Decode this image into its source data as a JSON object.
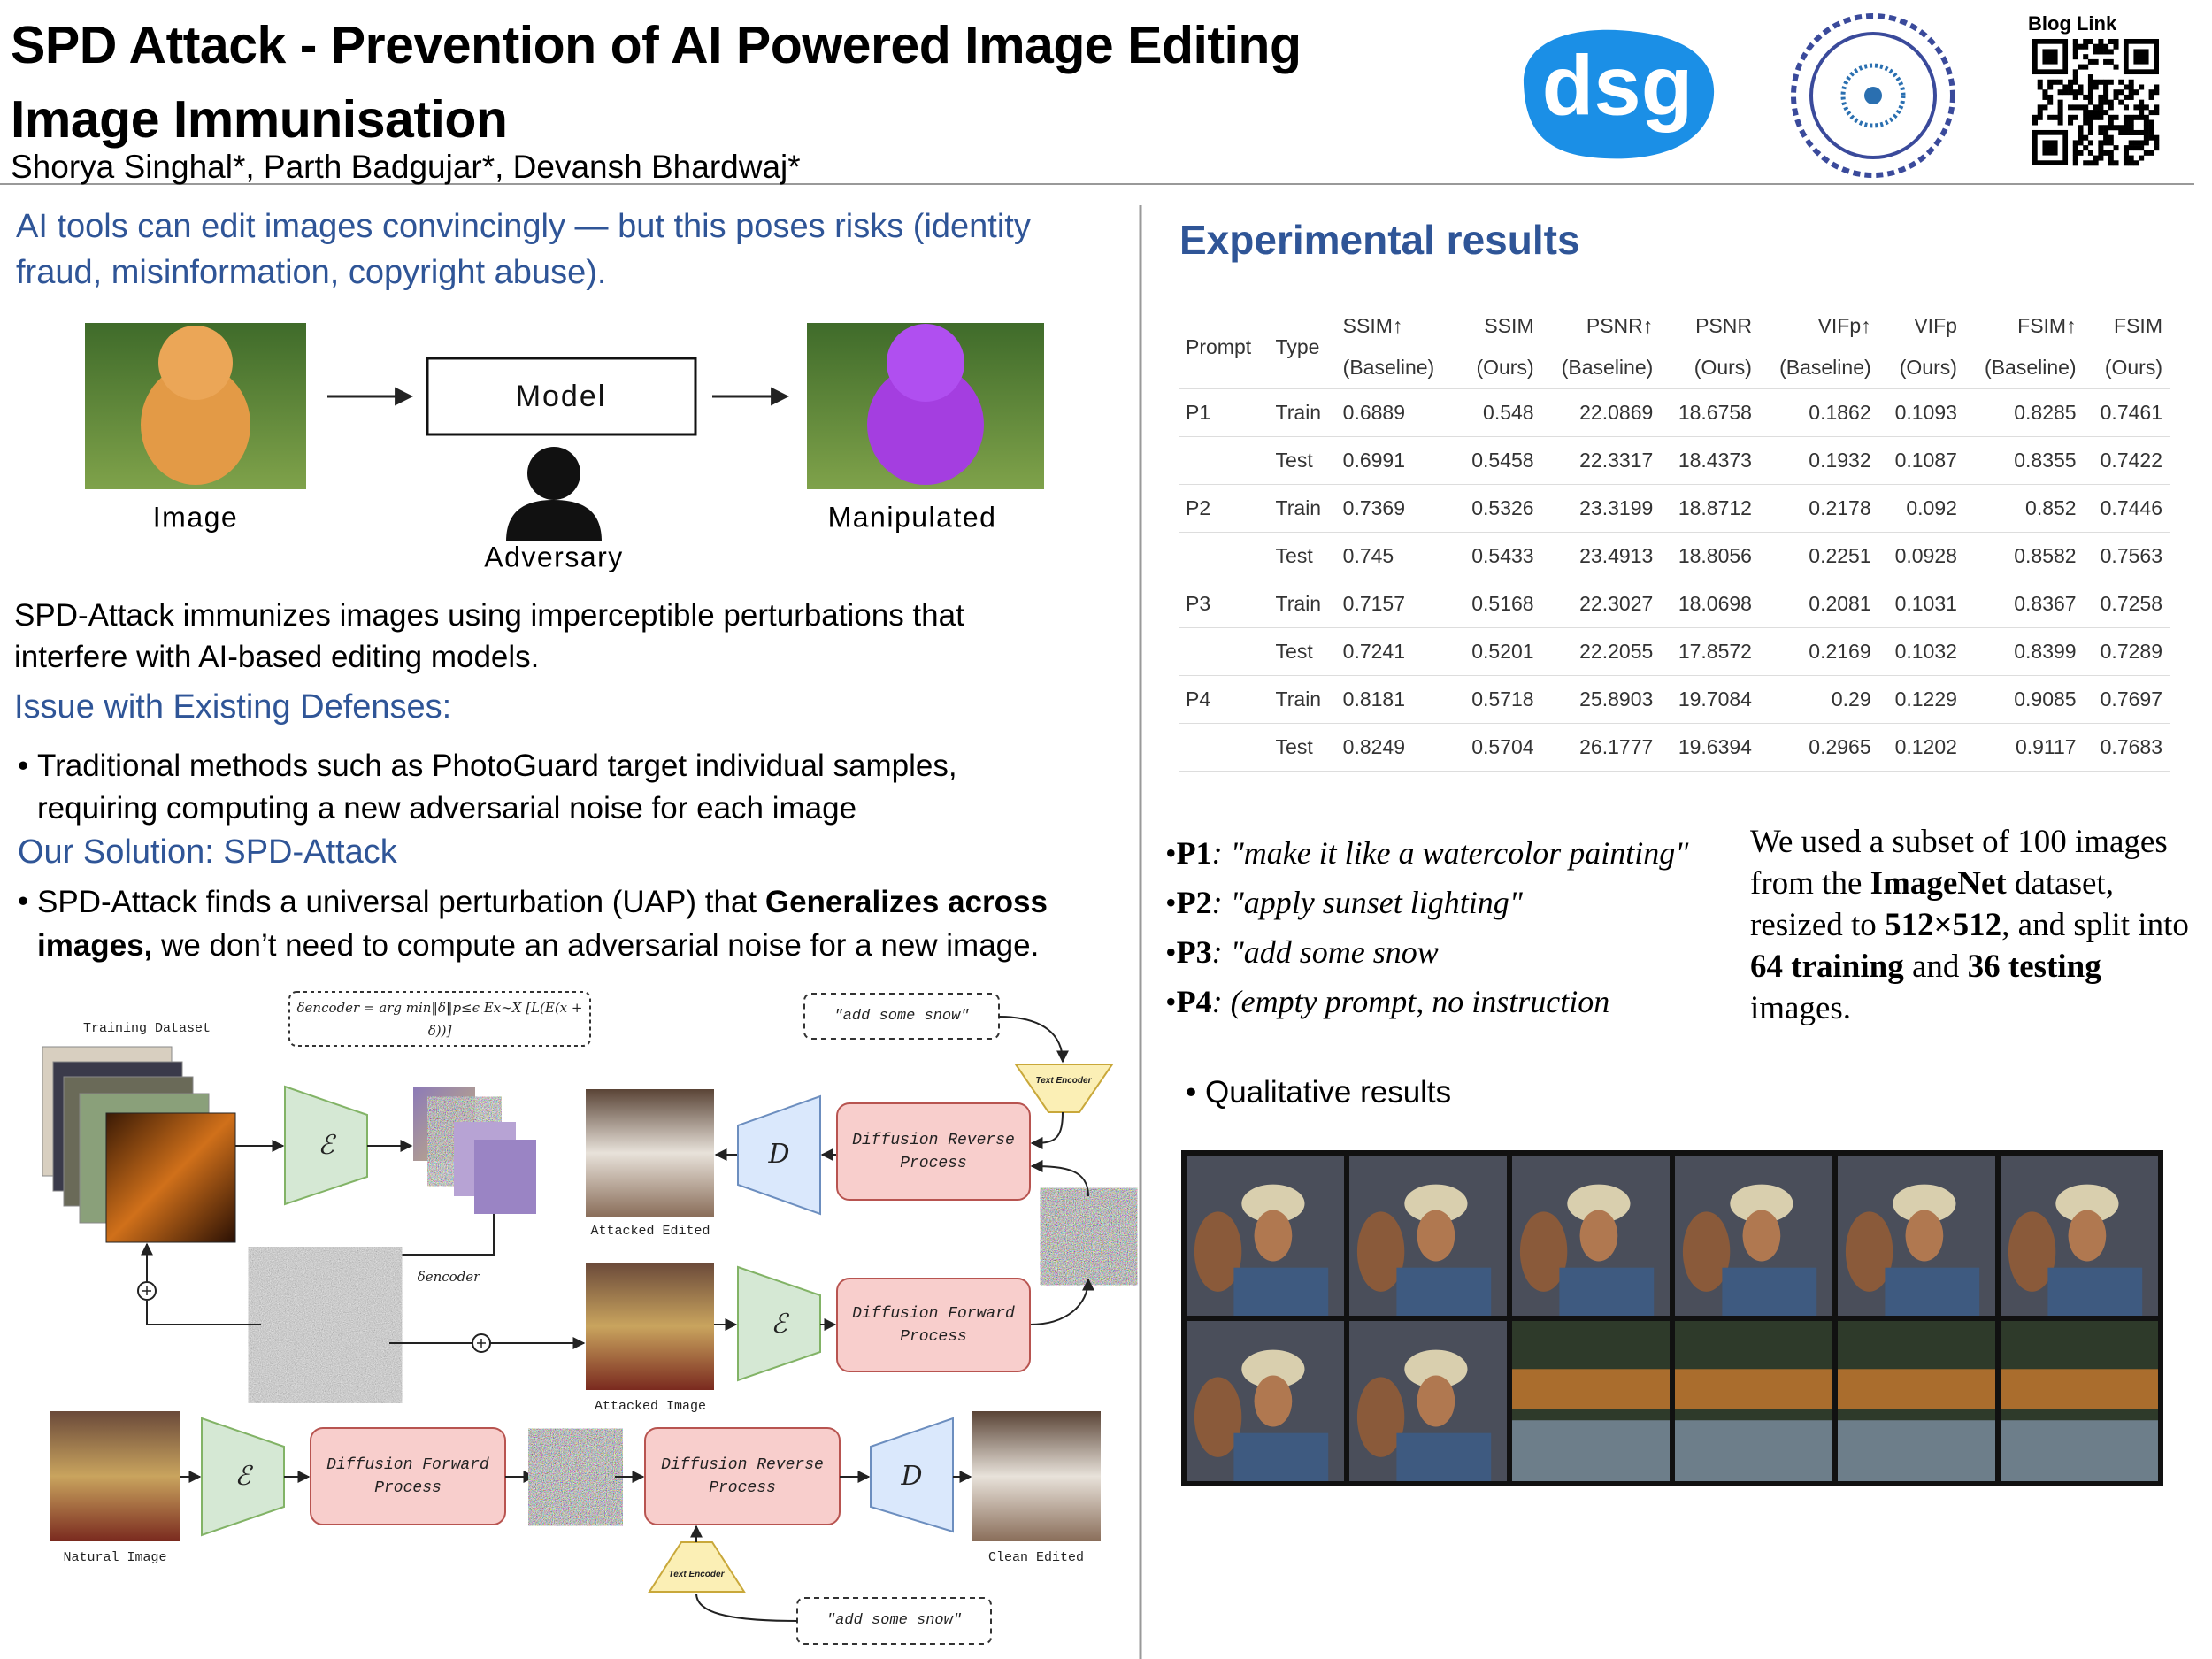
{
  "header": {
    "title_line1": "SPD Attack - Prevention of AI Powered Image Editing",
    "title_line2": "Image Immunisation",
    "authors": "Shorya Singhal*, Parth Badgujar*, Devansh Bhardwaj*",
    "logo_text": "dsg",
    "blog_link": "Blog Link"
  },
  "left": {
    "intro": "AI tools can edit images convincingly — but this poses risks (identity fraud, misinformation, copyright abuse).",
    "threat_diagram": {
      "image_label": "Image",
      "model_label": "Model",
      "adversary_label": "Adversary",
      "output_label": "Manipulated"
    },
    "summary": "SPD-Attack immunizes images using imperceptible perturbations that interfere with AI-based editing models.",
    "issue_heading": "Issue with Existing Defenses:",
    "issue_bullet": "Traditional methods such as PhotoGuard target individual samples, requiring computing a new adversarial noise for each image",
    "solution_heading": "Our Solution: SPD-Attack",
    "solution_bullet": [
      "SPD-Attack finds a universal perturbation (UAP) that ",
      "Generalizes across images,",
      " we don’t need to compute an adversarial noise for a new image."
    ],
    "pipeline": {
      "training_dataset": "Training Dataset",
      "formula": "δencoder = arg min‖δ‖p≤ϵ Ex∼X [L(E(x + δ))]",
      "prompts": [
        "\"add some snow\"",
        "\"add some snow\""
      ],
      "text_encoder": [
        "Text Encoder",
        "Text Encoder"
      ],
      "encoder": [
        "ℰ",
        "ℰ",
        "ℰ"
      ],
      "decoder": [
        "D",
        "D"
      ],
      "reverse": [
        "Diffusion Reverse Process",
        "Diffusion Reverse Process"
      ],
      "forward": [
        "Diffusion Forward Process",
        "Diffusion Forward Process"
      ],
      "delta": "δencoder",
      "image_labels": [
        "Attacked Edited",
        "Attacked Image",
        "Natural Image",
        "Clean Edited"
      ]
    }
  },
  "right": {
    "heading": "Experimental results",
    "table": {
      "header_top": [
        "Prompt",
        "Type",
        "SSIM↑",
        "SSIM",
        "PSNR↑",
        "PSNR",
        "VIFp↑",
        "VIFp",
        "FSIM↑",
        "FSIM"
      ],
      "header_bottom": [
        null,
        null,
        "(Baseline)",
        "(Ours)",
        "(Baseline)",
        "(Ours)",
        "(Baseline)",
        "(Ours)",
        "(Baseline)",
        "(Ours)"
      ],
      "rows": [
        [
          "P1",
          "Train",
          0.6889,
          0.548,
          22.0869,
          18.6758,
          0.1862,
          0.1093,
          0.8285,
          0.7461
        ],
        [
          null,
          "Test",
          0.6991,
          0.5458,
          22.3317,
          18.4373,
          0.1932,
          0.1087,
          0.8355,
          0.7422
        ],
        [
          "P2",
          "Train",
          0.7369,
          0.5326,
          23.3199,
          18.8712,
          0.2178,
          0.092,
          0.852,
          0.7446
        ],
        [
          null,
          "Test",
          0.745,
          0.5433,
          23.4913,
          18.8056,
          0.2251,
          0.0928,
          0.8582,
          0.7563
        ],
        [
          "P3",
          "Train",
          0.7157,
          0.5168,
          22.3027,
          18.0698,
          0.2081,
          0.1031,
          0.8367,
          0.7258
        ],
        [
          null,
          "Test",
          0.7241,
          0.5201,
          22.2055,
          17.8572,
          0.2169,
          0.1032,
          0.8399,
          0.7289
        ],
        [
          "P4",
          "Train",
          0.8181,
          0.5718,
          25.8903,
          19.7084,
          0.29,
          0.1229,
          0.9085,
          0.7697
        ],
        [
          null,
          "Test",
          0.8249,
          0.5704,
          26.1777,
          19.6394,
          0.2965,
          0.1202,
          0.9117,
          0.7683
        ]
      ]
    },
    "prompts": [
      {
        "id": "P1",
        "text": ": \"make it like a watercolor painting\""
      },
      {
        "id": "P2",
        "text": ": \"apply sunset lighting\""
      },
      {
        "id": "P3",
        "text": ": \"add some snow"
      },
      {
        "id": "P4",
        "text": ": (empty prompt, no instruction"
      }
    ],
    "dataset_note": [
      "We used a subset of 100 images from the ",
      "ImageNet",
      " dataset, resized to ",
      "512×512",
      ", and split into ",
      "64 training",
      " and ",
      "36 testing",
      " images."
    ],
    "qualitative_heading": "Qualitative results"
  }
}
